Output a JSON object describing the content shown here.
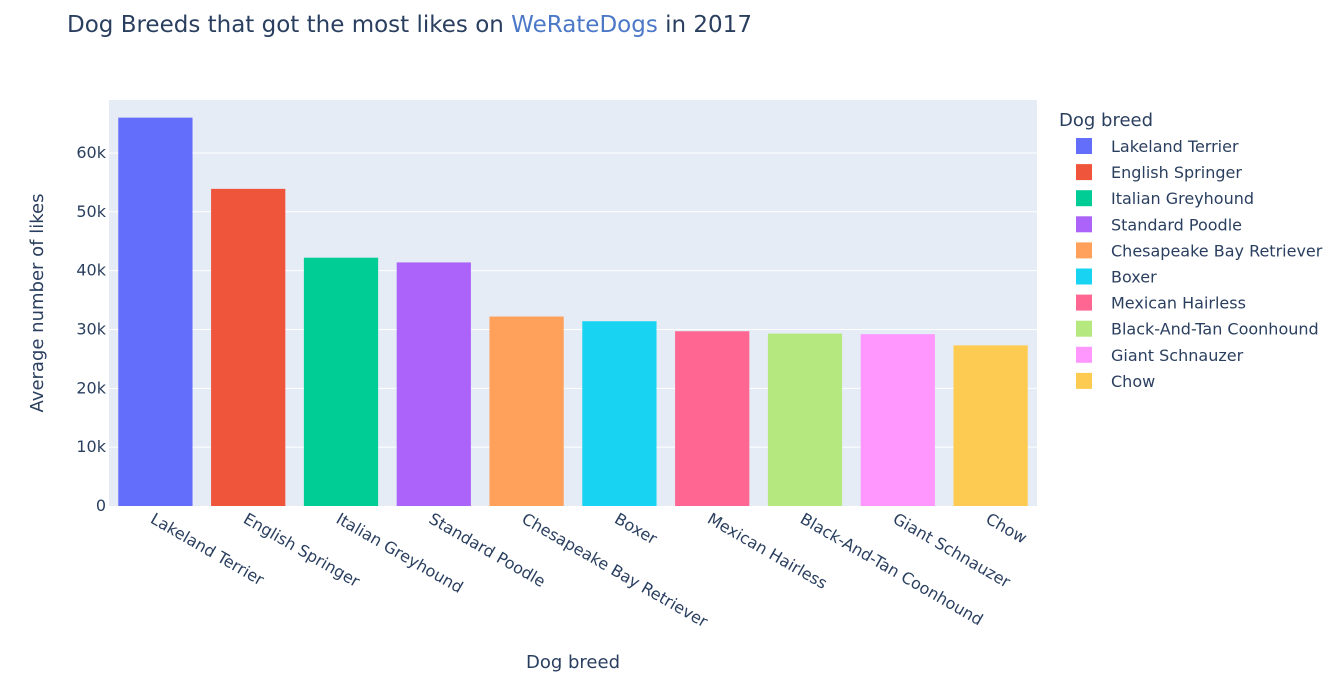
{
  "title": {
    "prefix": "Dog Breeds that got the most likes on ",
    "link": "WeRateDogs",
    "suffix": " in 2017"
  },
  "chart_data": {
    "type": "bar",
    "categories": [
      "Lakeland Terrier",
      "English Springer",
      "Italian Greyhound",
      "Standard Poodle",
      "Chesapeake Bay Retriever",
      "Boxer",
      "Mexican Hairless",
      "Black-And-Tan Coonhound",
      "Giant Schnauzer",
      "Chow"
    ],
    "values": [
      66000,
      53900,
      42200,
      41400,
      32200,
      31400,
      29700,
      29300,
      29200,
      27300
    ],
    "colors": [
      "#636efa",
      "#ef553b",
      "#00cc96",
      "#ab63fa",
      "#ffa15a",
      "#19d3f3",
      "#ff6692",
      "#b6e880",
      "#ff97ff",
      "#fecb52"
    ],
    "xlabel": "Dog breed",
    "ylabel": "Average number of likes",
    "ylim": [
      0,
      69000
    ],
    "yticks": [
      0,
      10000,
      20000,
      30000,
      40000,
      50000,
      60000
    ],
    "ytick_labels": [
      "0",
      "10k",
      "20k",
      "30k",
      "40k",
      "50k",
      "60k"
    ],
    "legend_title": "Dog breed",
    "legend_position": "right",
    "grid": true,
    "plot_background": "#e5ecf6"
  }
}
